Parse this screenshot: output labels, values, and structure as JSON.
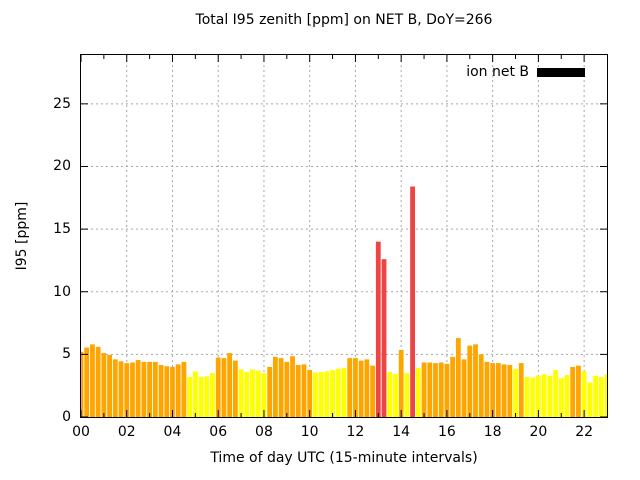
{
  "chart_data": {
    "type": "bar",
    "title": "Total I95 zenith [ppm] on NET B, DoY=266",
    "xlabel": "Time of day UTC (15-minute intervals)",
    "ylabel": "I95 [ppm]",
    "interval_minutes": 15,
    "xlim_hours": [
      0,
      23
    ],
    "ylim": [
      0,
      28.9
    ],
    "x_ticks": [
      {
        "hour": 0,
        "label": "00"
      },
      {
        "hour": 2,
        "label": "02"
      },
      {
        "hour": 4,
        "label": "04"
      },
      {
        "hour": 6,
        "label": "06"
      },
      {
        "hour": 8,
        "label": "08"
      },
      {
        "hour": 10,
        "label": "10"
      },
      {
        "hour": 12,
        "label": "12"
      },
      {
        "hour": 14,
        "label": "14"
      },
      {
        "hour": 16,
        "label": "16"
      },
      {
        "hour": 18,
        "label": "18"
      },
      {
        "hour": 20,
        "label": "20"
      },
      {
        "hour": 22,
        "label": "22"
      }
    ],
    "x_minor_tick_hours": [
      1,
      3,
      5,
      7,
      9,
      11,
      13,
      15,
      17,
      19,
      21
    ],
    "y_ticks": [
      0,
      5,
      10,
      15,
      20,
      25
    ],
    "grid": {
      "on": true,
      "color": "#a8a8a8",
      "dash": "2 3"
    },
    "legend": {
      "position": "top-right-inside",
      "swatch_color": "#000000"
    },
    "colors": {
      "orange": "#ffa500",
      "yellow": "#ffff00",
      "red": "#ee4444"
    },
    "series": [
      {
        "name": "ion net B",
        "points": [
          {
            "t": 0.0,
            "v": 5.2,
            "c": "orange"
          },
          {
            "t": 0.25,
            "v": 5.55,
            "c": "orange"
          },
          {
            "t": 0.5,
            "v": 5.8,
            "c": "orange"
          },
          {
            "t": 0.75,
            "v": 5.6,
            "c": "orange"
          },
          {
            "t": 1.0,
            "v": 5.1,
            "c": "orange"
          },
          {
            "t": 1.25,
            "v": 4.95,
            "c": "orange"
          },
          {
            "t": 1.5,
            "v": 4.6,
            "c": "orange"
          },
          {
            "t": 1.75,
            "v": 4.45,
            "c": "orange"
          },
          {
            "t": 2.0,
            "v": 4.3,
            "c": "orange"
          },
          {
            "t": 2.25,
            "v": 4.35,
            "c": "orange"
          },
          {
            "t": 2.5,
            "v": 4.55,
            "c": "orange"
          },
          {
            "t": 2.75,
            "v": 4.4,
            "c": "orange"
          },
          {
            "t": 3.0,
            "v": 4.4,
            "c": "orange"
          },
          {
            "t": 3.25,
            "v": 4.4,
            "c": "orange"
          },
          {
            "t": 3.5,
            "v": 4.15,
            "c": "orange"
          },
          {
            "t": 3.75,
            "v": 4.05,
            "c": "orange"
          },
          {
            "t": 4.0,
            "v": 4.0,
            "c": "orange"
          },
          {
            "t": 4.25,
            "v": 4.2,
            "c": "orange"
          },
          {
            "t": 4.5,
            "v": 4.4,
            "c": "orange"
          },
          {
            "t": 4.75,
            "v": 3.2,
            "c": "yellow"
          },
          {
            "t": 5.0,
            "v": 3.65,
            "c": "yellow"
          },
          {
            "t": 5.25,
            "v": 3.2,
            "c": "yellow"
          },
          {
            "t": 5.5,
            "v": 3.25,
            "c": "yellow"
          },
          {
            "t": 5.75,
            "v": 3.5,
            "c": "yellow"
          },
          {
            "t": 6.0,
            "v": 4.75,
            "c": "orange"
          },
          {
            "t": 6.25,
            "v": 4.7,
            "c": "orange"
          },
          {
            "t": 6.5,
            "v": 5.1,
            "c": "orange"
          },
          {
            "t": 6.75,
            "v": 4.5,
            "c": "orange"
          },
          {
            "t": 7.0,
            "v": 3.8,
            "c": "yellow"
          },
          {
            "t": 7.25,
            "v": 3.6,
            "c": "yellow"
          },
          {
            "t": 7.5,
            "v": 3.8,
            "c": "yellow"
          },
          {
            "t": 7.75,
            "v": 3.7,
            "c": "yellow"
          },
          {
            "t": 8.0,
            "v": 3.5,
            "c": "yellow"
          },
          {
            "t": 8.25,
            "v": 4.0,
            "c": "orange"
          },
          {
            "t": 8.5,
            "v": 4.8,
            "c": "orange"
          },
          {
            "t": 8.75,
            "v": 4.7,
            "c": "orange"
          },
          {
            "t": 9.0,
            "v": 4.4,
            "c": "orange"
          },
          {
            "t": 9.25,
            "v": 4.85,
            "c": "orange"
          },
          {
            "t": 9.5,
            "v": 4.15,
            "c": "orange"
          },
          {
            "t": 9.75,
            "v": 4.2,
            "c": "orange"
          },
          {
            "t": 10.0,
            "v": 3.75,
            "c": "orange"
          },
          {
            "t": 10.25,
            "v": 3.55,
            "c": "yellow"
          },
          {
            "t": 10.5,
            "v": 3.6,
            "c": "yellow"
          },
          {
            "t": 10.75,
            "v": 3.65,
            "c": "yellow"
          },
          {
            "t": 11.0,
            "v": 3.75,
            "c": "yellow"
          },
          {
            "t": 11.25,
            "v": 3.85,
            "c": "yellow"
          },
          {
            "t": 11.5,
            "v": 3.9,
            "c": "yellow"
          },
          {
            "t": 11.75,
            "v": 4.7,
            "c": "orange"
          },
          {
            "t": 12.0,
            "v": 4.7,
            "c": "orange"
          },
          {
            "t": 12.25,
            "v": 4.5,
            "c": "orange"
          },
          {
            "t": 12.5,
            "v": 4.6,
            "c": "orange"
          },
          {
            "t": 12.75,
            "v": 4.1,
            "c": "orange"
          },
          {
            "t": 13.0,
            "v": 14.0,
            "c": "red"
          },
          {
            "t": 13.25,
            "v": 12.6,
            "c": "red"
          },
          {
            "t": 13.5,
            "v": 3.6,
            "c": "yellow"
          },
          {
            "t": 13.75,
            "v": 3.45,
            "c": "yellow"
          },
          {
            "t": 14.0,
            "v": 5.35,
            "c": "orange"
          },
          {
            "t": 14.25,
            "v": 3.5,
            "c": "yellow"
          },
          {
            "t": 14.5,
            "v": 18.4,
            "c": "red"
          },
          {
            "t": 14.75,
            "v": 3.9,
            "c": "yellow"
          },
          {
            "t": 15.0,
            "v": 4.35,
            "c": "orange"
          },
          {
            "t": 15.25,
            "v": 4.35,
            "c": "orange"
          },
          {
            "t": 15.5,
            "v": 4.3,
            "c": "orange"
          },
          {
            "t": 15.75,
            "v": 4.35,
            "c": "orange"
          },
          {
            "t": 16.0,
            "v": 4.25,
            "c": "orange"
          },
          {
            "t": 16.25,
            "v": 4.8,
            "c": "orange"
          },
          {
            "t": 16.5,
            "v": 6.3,
            "c": "orange"
          },
          {
            "t": 16.75,
            "v": 4.6,
            "c": "orange"
          },
          {
            "t": 17.0,
            "v": 5.7,
            "c": "orange"
          },
          {
            "t": 17.25,
            "v": 5.8,
            "c": "orange"
          },
          {
            "t": 17.5,
            "v": 5.0,
            "c": "orange"
          },
          {
            "t": 17.75,
            "v": 4.4,
            "c": "orange"
          },
          {
            "t": 18.0,
            "v": 4.3,
            "c": "orange"
          },
          {
            "t": 18.25,
            "v": 4.3,
            "c": "orange"
          },
          {
            "t": 18.5,
            "v": 4.2,
            "c": "orange"
          },
          {
            "t": 18.75,
            "v": 4.15,
            "c": "orange"
          },
          {
            "t": 19.0,
            "v": 3.85,
            "c": "yellow"
          },
          {
            "t": 19.25,
            "v": 4.3,
            "c": "orange"
          },
          {
            "t": 19.5,
            "v": 3.2,
            "c": "yellow"
          },
          {
            "t": 19.75,
            "v": 3.15,
            "c": "yellow"
          },
          {
            "t": 20.0,
            "v": 3.3,
            "c": "yellow"
          },
          {
            "t": 20.25,
            "v": 3.4,
            "c": "yellow"
          },
          {
            "t": 20.5,
            "v": 3.3,
            "c": "yellow"
          },
          {
            "t": 20.75,
            "v": 3.75,
            "c": "yellow"
          },
          {
            "t": 21.0,
            "v": 3.1,
            "c": "yellow"
          },
          {
            "t": 21.25,
            "v": 3.35,
            "c": "yellow"
          },
          {
            "t": 21.5,
            "v": 4.0,
            "c": "orange"
          },
          {
            "t": 21.75,
            "v": 4.1,
            "c": "orange"
          },
          {
            "t": 22.0,
            "v": 3.65,
            "c": "yellow"
          },
          {
            "t": 22.25,
            "v": 2.75,
            "c": "yellow"
          },
          {
            "t": 22.5,
            "v": 3.3,
            "c": "yellow"
          },
          {
            "t": 22.75,
            "v": 3.2,
            "c": "yellow"
          },
          {
            "t": 23.0,
            "v": 3.4,
            "c": "yellow"
          }
        ]
      }
    ]
  }
}
